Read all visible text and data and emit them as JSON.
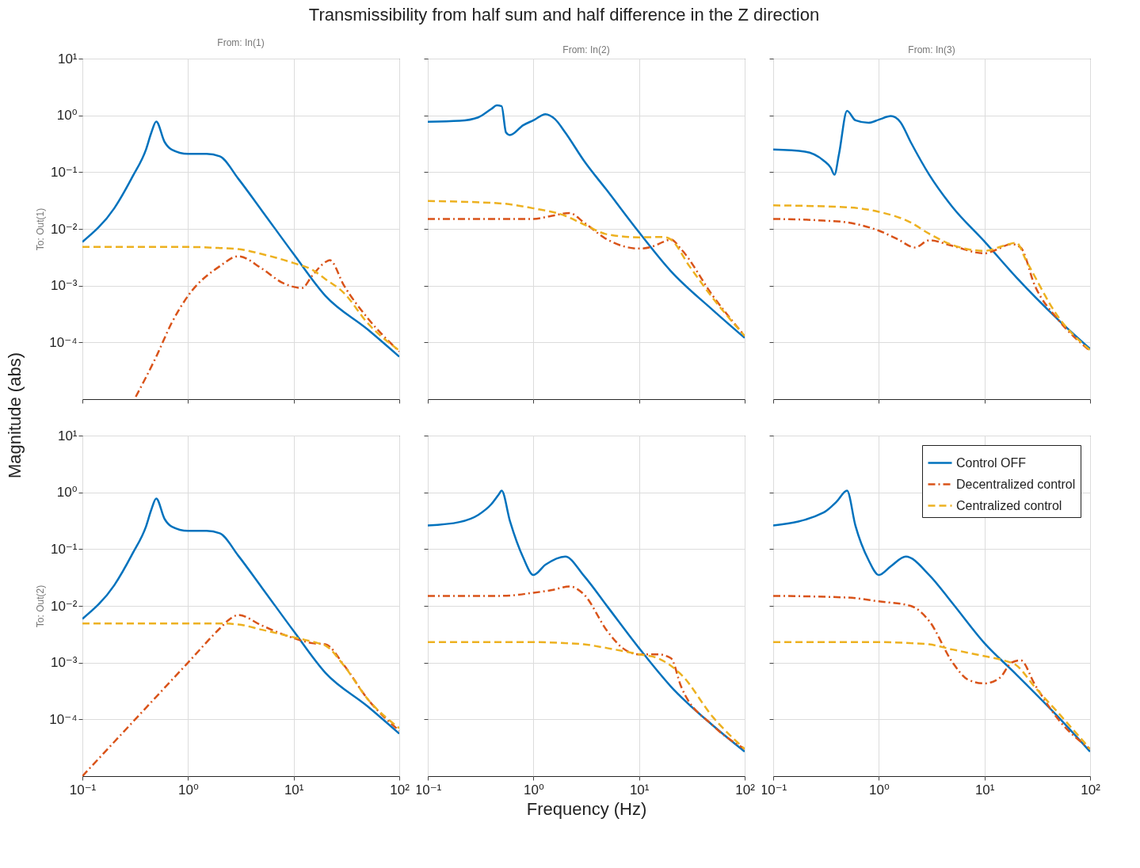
{
  "chart_data": [
    {
      "type": "line",
      "title": "From: In(1)",
      "ylabel": "To: Out(1)",
      "annotations": [
        "Transmissibility from half sum and half difference in the Z direction",
        "Magnitude (abs)"
      ],
      "log": "xy",
      "grid": true,
      "tick_labels": "y",
      "xlim": [
        0.1,
        100
      ],
      "ylim": [
        1e-05,
        10
      ],
      "xticks": [
        {
          "value": 0.1,
          "label": null
        },
        {
          "value": 1,
          "label": null
        },
        {
          "value": 10,
          "label": null
        },
        {
          "value": 100,
          "label": null
        }
      ],
      "yticks": [
        {
          "value": 0.0001,
          "label": "10⁻⁴"
        },
        {
          "value": 0.001,
          "label": "10⁻³"
        },
        {
          "value": 0.01,
          "label": "10⁻²"
        },
        {
          "value": 0.1,
          "label": "10⁻¹"
        },
        {
          "value": 1,
          "label": "10⁰"
        },
        {
          "value": 10,
          "label": "10¹"
        }
      ],
      "series": [
        {
          "color": "#0072bd",
          "line_style": "solid",
          "x": [
            0.1,
            0.2,
            0.3,
            0.4,
            0.45,
            0.5,
            0.6,
            0.7,
            1,
            1.5,
            2,
            3,
            5,
            10,
            20,
            50,
            100
          ],
          "values": [
            0.0059,
            0.023,
            0.085,
            0.25,
            0.5,
            0.78,
            0.34,
            0.25,
            0.21,
            0.21,
            0.19,
            0.076,
            0.021,
            0.0036,
            0.00066,
            0.00017,
            5.6e-05
          ]
        },
        {
          "color": "#d95319",
          "line_style": "dashdot",
          "x": [
            0.32,
            0.5,
            0.7,
            1,
            2,
            3,
            5,
            8,
            12,
            15,
            20,
            22,
            30,
            50,
            100
          ],
          "values": [
            1.1e-05,
            5.6e-05,
            0.00022,
            0.00066,
            0.0022,
            0.0033,
            0.002,
            0.0011,
            0.00091,
            0.0015,
            0.0026,
            0.0028,
            0.001,
            0.00027,
            6.9e-05
          ]
        },
        {
          "color": "#edb120",
          "line_style": "dashed",
          "x": [
            0.1,
            1,
            2,
            3,
            5,
            10,
            15,
            20,
            30,
            50,
            100
          ],
          "values": [
            0.0048,
            0.0048,
            0.0046,
            0.0044,
            0.0036,
            0.0025,
            0.0019,
            0.0013,
            0.00074,
            0.00022,
            7.2e-05
          ]
        }
      ]
    },
    {
      "type": "line",
      "title": "From: In(2)",
      "log": "xy",
      "grid": true,
      "tick_labels": false,
      "xlim": [
        0.1,
        100
      ],
      "ylim": [
        1e-05,
        10
      ],
      "xticks": [
        {
          "value": 0.1,
          "label": null
        },
        {
          "value": 1,
          "label": null
        },
        {
          "value": 10,
          "label": null
        },
        {
          "value": 100,
          "label": null
        }
      ],
      "yticks": [
        {
          "value": 0.0001,
          "label": null
        },
        {
          "value": 0.001,
          "label": null
        },
        {
          "value": 0.01,
          "label": null
        },
        {
          "value": 0.1,
          "label": null
        },
        {
          "value": 1,
          "label": null
        },
        {
          "value": 10,
          "label": null
        }
      ],
      "series": [
        {
          "color": "#0072bd",
          "line_style": "solid",
          "x": [
            0.1,
            0.2,
            0.3,
            0.4,
            0.45,
            0.5,
            0.55,
            0.6,
            0.8,
            1,
            1.3,
            1.6,
            2,
            3,
            5,
            10,
            20,
            50,
            100
          ],
          "values": [
            0.77,
            0.8,
            0.92,
            1.3,
            1.5,
            1.45,
            0.5,
            0.45,
            0.67,
            0.82,
            1.05,
            0.86,
            0.5,
            0.16,
            0.047,
            0.0087,
            0.0018,
            0.00037,
            0.00012
          ]
        },
        {
          "color": "#d95319",
          "line_style": "dashdot",
          "x": [
            0.1,
            1,
            1.5,
            2.2,
            3,
            5,
            10,
            13,
            17,
            20,
            25,
            50,
            100
          ],
          "values": [
            0.015,
            0.015,
            0.017,
            0.019,
            0.013,
            0.0065,
            0.0045,
            0.0048,
            0.0059,
            0.0065,
            0.0044,
            0.00066,
            0.00013
          ]
        },
        {
          "color": "#edb120",
          "line_style": "dashed",
          "x": [
            0.1,
            0.5,
            1,
            2,
            3,
            5,
            10,
            17,
            20,
            30,
            50,
            100
          ],
          "values": [
            0.031,
            0.028,
            0.023,
            0.017,
            0.012,
            0.008,
            0.0071,
            0.0072,
            0.0065,
            0.0022,
            0.0006,
            0.00013
          ]
        }
      ]
    },
    {
      "type": "line",
      "title": "From: In(3)",
      "log": "xy",
      "grid": true,
      "tick_labels": false,
      "xlim": [
        0.1,
        100
      ],
      "ylim": [
        1e-05,
        10
      ],
      "xticks": [
        {
          "value": 0.1,
          "label": null
        },
        {
          "value": 1,
          "label": null
        },
        {
          "value": 10,
          "label": null
        },
        {
          "value": 100,
          "label": null
        }
      ],
      "yticks": [
        {
          "value": 0.0001,
          "label": null
        },
        {
          "value": 0.001,
          "label": null
        },
        {
          "value": 0.01,
          "label": null
        },
        {
          "value": 0.1,
          "label": null
        },
        {
          "value": 1,
          "label": null
        },
        {
          "value": 10,
          "label": null
        }
      ],
      "series": [
        {
          "color": "#0072bd",
          "line_style": "solid",
          "x": [
            0.1,
            0.2,
            0.3,
            0.35,
            0.38,
            0.42,
            0.5,
            0.6,
            0.8,
            1,
            1.3,
            1.6,
            2,
            3,
            5,
            10,
            20,
            50,
            100
          ],
          "values": [
            0.25,
            0.23,
            0.16,
            0.12,
            0.09,
            0.21,
            1.2,
            0.82,
            0.74,
            0.84,
            0.97,
            0.76,
            0.34,
            0.09,
            0.024,
            0.006,
            0.0014,
            0.00025,
            7.7e-05
          ]
        },
        {
          "color": "#d95319",
          "line_style": "dashdot",
          "x": [
            0.1,
            0.3,
            0.5,
            1,
            1.5,
            2.2,
            3,
            5,
            10,
            13,
            18,
            22,
            30,
            50,
            100
          ],
          "values": [
            0.015,
            0.014,
            0.013,
            0.0093,
            0.0066,
            0.0047,
            0.0063,
            0.005,
            0.0037,
            0.0043,
            0.0054,
            0.0047,
            0.001,
            0.00025,
            7.1e-05
          ]
        },
        {
          "color": "#edb120",
          "line_style": "dashed",
          "x": [
            0.1,
            0.5,
            1,
            2,
            3,
            5,
            10,
            15,
            20,
            25,
            50,
            100
          ],
          "values": [
            0.026,
            0.024,
            0.02,
            0.013,
            0.0082,
            0.0052,
            0.0041,
            0.005,
            0.0057,
            0.0027,
            0.00028,
            7.3e-05
          ]
        }
      ]
    },
    {
      "type": "line",
      "ylabel": "To: Out(2)",
      "log": "xy",
      "grid": true,
      "xlim": [
        0.1,
        100
      ],
      "ylim": [
        1e-05,
        10
      ],
      "xticks": [
        {
          "value": 0.1,
          "label": "10⁻¹"
        },
        {
          "value": 1,
          "label": "10⁰"
        },
        {
          "value": 10,
          "label": "10¹"
        },
        {
          "value": 100,
          "label": "10²"
        }
      ],
      "yticks": [
        {
          "value": 0.0001,
          "label": "10⁻⁴"
        },
        {
          "value": 0.001,
          "label": "10⁻³"
        },
        {
          "value": 0.01,
          "label": "10⁻²"
        },
        {
          "value": 0.1,
          "label": "10⁻¹"
        },
        {
          "value": 1,
          "label": "10⁰"
        },
        {
          "value": 10,
          "label": "10¹"
        }
      ],
      "series": [
        {
          "color": "#0072bd",
          "line_style": "solid",
          "x": [
            0.1,
            0.2,
            0.3,
            0.4,
            0.45,
            0.5,
            0.6,
            0.7,
            1,
            1.5,
            2,
            3,
            5,
            10,
            20,
            50,
            100
          ],
          "values": [
            0.0059,
            0.023,
            0.085,
            0.25,
            0.5,
            0.78,
            0.34,
            0.25,
            0.21,
            0.21,
            0.19,
            0.076,
            0.021,
            0.0036,
            0.00066,
            0.00017,
            5.6e-05
          ]
        },
        {
          "color": "#d95319",
          "line_style": "dashdot",
          "x": [
            0.1,
            1,
            2,
            2.5,
            3,
            5,
            10,
            15,
            20,
            30,
            50,
            100
          ],
          "values": [
            1e-05,
            0.001,
            0.004,
            0.0059,
            0.0069,
            0.0045,
            0.0027,
            0.0022,
            0.0021,
            0.0009,
            0.00023,
            6.3e-05
          ]
        },
        {
          "color": "#edb120",
          "line_style": "dashed",
          "x": [
            0.1,
            2,
            3,
            5,
            10,
            17,
            20,
            30,
            50,
            100
          ],
          "values": [
            0.0049,
            0.0049,
            0.0047,
            0.0038,
            0.0028,
            0.0022,
            0.002,
            0.00088,
            0.00023,
            7e-05
          ]
        }
      ]
    },
    {
      "type": "line",
      "xlabel": "Frequency  (Hz)",
      "log": "xy",
      "grid": true,
      "tick_labels": "x",
      "xlim": [
        0.1,
        100
      ],
      "ylim": [
        1e-05,
        10
      ],
      "xticks": [
        {
          "value": 0.1,
          "label": "10⁻¹"
        },
        {
          "value": 1,
          "label": "10⁰"
        },
        {
          "value": 10,
          "label": "10¹"
        },
        {
          "value": 100,
          "label": "10²"
        }
      ],
      "yticks": [
        {
          "value": 0.0001,
          "label": null
        },
        {
          "value": 0.001,
          "label": null
        },
        {
          "value": 0.01,
          "label": null
        },
        {
          "value": 0.1,
          "label": null
        },
        {
          "value": 1,
          "label": null
        },
        {
          "value": 10,
          "label": null
        }
      ],
      "series": [
        {
          "color": "#0072bd",
          "line_style": "solid",
          "x": [
            0.1,
            0.2,
            0.3,
            0.4,
            0.47,
            0.5,
            0.6,
            0.8,
            1,
            1.3,
            2,
            3,
            5,
            10,
            20,
            50,
            100
          ],
          "values": [
            0.26,
            0.3,
            0.4,
            0.62,
            0.92,
            1.07,
            0.31,
            0.071,
            0.035,
            0.053,
            0.074,
            0.034,
            0.0098,
            0.0018,
            0.00038,
            7.8e-05,
            2.7e-05
          ]
        },
        {
          "color": "#d95319",
          "line_style": "dashdot",
          "x": [
            0.1,
            0.5,
            1,
            1.5,
            2.2,
            3,
            5,
            7,
            10,
            15,
            20,
            25,
            50,
            100
          ],
          "values": [
            0.015,
            0.015,
            0.017,
            0.019,
            0.022,
            0.016,
            0.0036,
            0.0018,
            0.0014,
            0.0014,
            0.0012,
            0.00038,
            7.8e-05,
            3e-05
          ]
        },
        {
          "color": "#edb120",
          "line_style": "dashed",
          "x": [
            0.1,
            1,
            2,
            3,
            5,
            7,
            10,
            15,
            25,
            50,
            100
          ],
          "values": [
            0.0023,
            0.0023,
            0.0022,
            0.0021,
            0.0018,
            0.0016,
            0.0014,
            0.0012,
            0.00062,
            0.00011,
            3e-05
          ]
        }
      ]
    },
    {
      "type": "line",
      "log": "xy",
      "grid": true,
      "tick_labels": "x",
      "legend": "top right",
      "xlim": [
        0.1,
        100
      ],
      "ylim": [
        1e-05,
        10
      ],
      "xticks": [
        {
          "value": 0.1,
          "label": "10⁻¹"
        },
        {
          "value": 1,
          "label": "10⁰"
        },
        {
          "value": 10,
          "label": "10¹"
        },
        {
          "value": 100,
          "label": "10²"
        }
      ],
      "yticks": [
        {
          "value": 0.0001,
          "label": null
        },
        {
          "value": 0.001,
          "label": null
        },
        {
          "value": 0.01,
          "label": null
        },
        {
          "value": 0.1,
          "label": null
        },
        {
          "value": 1,
          "label": null
        },
        {
          "value": 10,
          "label": null
        }
      ],
      "series": [
        {
          "name": "Control OFF",
          "color": "#0072bd",
          "line_style": "solid",
          "x": [
            0.1,
            0.3,
            0.4,
            0.5,
            0.6,
            0.8,
            1,
            1.3,
            1.8,
            3,
            5,
            10,
            20,
            50,
            100
          ],
          "values": [
            0.26,
            0.44,
            0.69,
            1.07,
            0.26,
            0.064,
            0.035,
            0.05,
            0.074,
            0.035,
            0.011,
            0.0022,
            0.00062,
            0.00011,
            2.7e-05
          ]
        },
        {
          "name": "Decentralized control",
          "color": "#d95319",
          "line_style": "dashdot",
          "x": [
            0.1,
            0.5,
            1,
            2,
            3,
            5,
            7,
            10,
            14,
            18,
            22,
            30,
            50,
            100
          ],
          "values": [
            0.015,
            0.014,
            0.012,
            0.01,
            0.0054,
            0.001,
            0.0005,
            0.00043,
            0.00054,
            0.001,
            0.0011,
            0.00041,
            0.0001,
            3e-05
          ]
        },
        {
          "name": "Centralized control",
          "color": "#edb120",
          "line_style": "dashed",
          "x": [
            0.1,
            1,
            2,
            3,
            5,
            10,
            15,
            20,
            30,
            50,
            100
          ],
          "values": [
            0.0023,
            0.0023,
            0.0022,
            0.0021,
            0.0017,
            0.0013,
            0.0011,
            0.0009,
            0.00037,
            0.00013,
            3e-05
          ]
        }
      ]
    }
  ]
}
